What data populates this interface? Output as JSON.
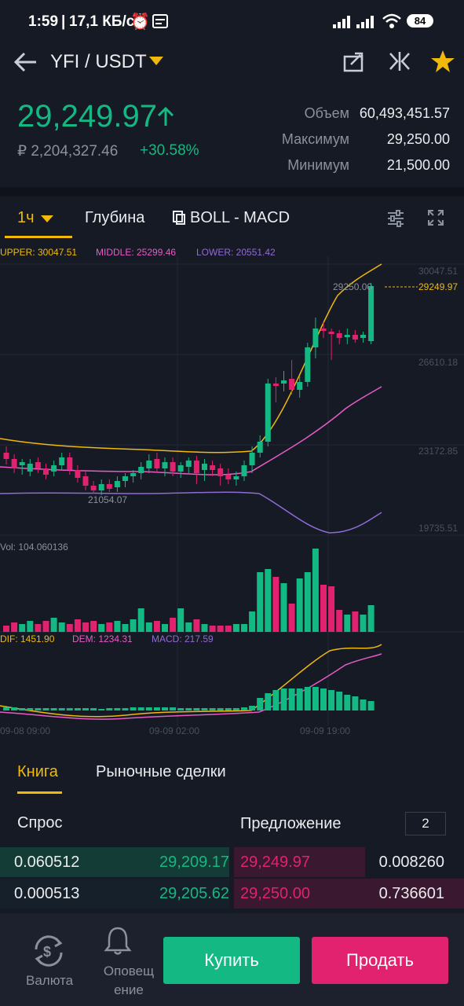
{
  "status": {
    "time": "1:59",
    "speed": "17,1 КБ/с",
    "battery": "84"
  },
  "header": {
    "pair": "YFI / USDT",
    "icons": [
      "back-arrow-icon",
      "share-icon",
      "compare-icon",
      "star-icon"
    ]
  },
  "price": {
    "last": "29,249.97",
    "rub": "₽ 2,204,327.46",
    "change": "+30.58%",
    "stats": [
      {
        "label": "Объем",
        "value": "60,493,451.57"
      },
      {
        "label": "Максимум",
        "value": "29,250.00"
      },
      {
        "label": "Минимум",
        "value": "21,500.00"
      }
    ]
  },
  "tabs": {
    "interval": "1ч",
    "depth": "Глубина",
    "indicators": "BOLL - MACD"
  },
  "chart_labels": {
    "upper": "UPPER: 30047.51",
    "middle": "MIDDLE: 25299.46",
    "lower": "LOWER: 20551.42",
    "y_ticks": [
      "30047.51",
      "26610.18",
      "23172.85",
      "19735.51"
    ],
    "price_tag": "29249.97",
    "high_mark": "29250.00",
    "low_mark": "21054.07",
    "vol": "Vol: 104.060136",
    "dif": "DIF: 1451.90",
    "dem": "DEM: 1234.31",
    "macd": "MACD: 217.59",
    "x_ticks": [
      "09-08 09:00",
      "09-09 02:00",
      "09-09 19:00"
    ]
  },
  "colors": {
    "up": "#14b883",
    "down": "#e2216f",
    "upper": "#f0b90b",
    "middle": "#e65bc4",
    "lower": "#8f6bd6",
    "bg": "#161a25"
  },
  "book": {
    "tab_book": "Книга",
    "tab_trades": "Рыночные сделки",
    "bid_header": "Спрос",
    "ask_header": "Предложение",
    "depth_value": "2",
    "rows": [
      {
        "bid_amount": "0.060512",
        "bid_price": "29,209.17",
        "ask_price": "29,249.97",
        "ask_amount": "0.008260"
      },
      {
        "bid_amount": "0.000513",
        "bid_price": "29,205.62",
        "ask_price": "29,250.00",
        "ask_amount": "0.736601"
      }
    ]
  },
  "bottom": {
    "currency_label": "Валюта",
    "alerts_label": "Оповещение",
    "buy": "Купить",
    "sell": "Продать"
  }
}
